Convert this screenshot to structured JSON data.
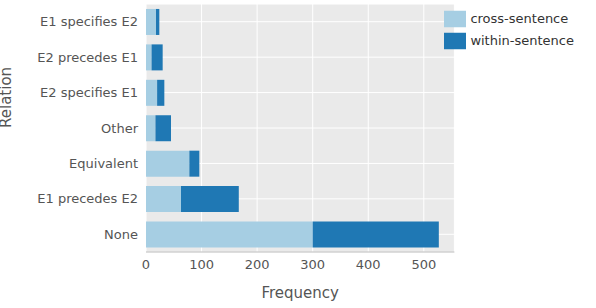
{
  "chart_data": {
    "type": "bar",
    "orientation": "horizontal",
    "stacked": true,
    "grid": true,
    "legend": "upper right",
    "x_label": "Frequency",
    "y_label": "Relation",
    "categories": [
      "E1 specifies E2",
      "E2 precedes E1",
      "E2 specifies E1",
      "Other",
      "Equivalent",
      "E1 precedes E2",
      "None"
    ],
    "series": [
      {
        "name": "cross-sentence",
        "color": "#a6cee3",
        "values": [
          18,
          10,
          20,
          17,
          78,
          63,
          300
        ]
      },
      {
        "name": "within-sentence",
        "color": "#1f78b4",
        "values": [
          6,
          20,
          13,
          28,
          18,
          104,
          227
        ]
      }
    ],
    "xlim": [
      0,
      555
    ],
    "xticks": [
      0,
      100,
      200,
      300,
      400,
      500
    ]
  }
}
